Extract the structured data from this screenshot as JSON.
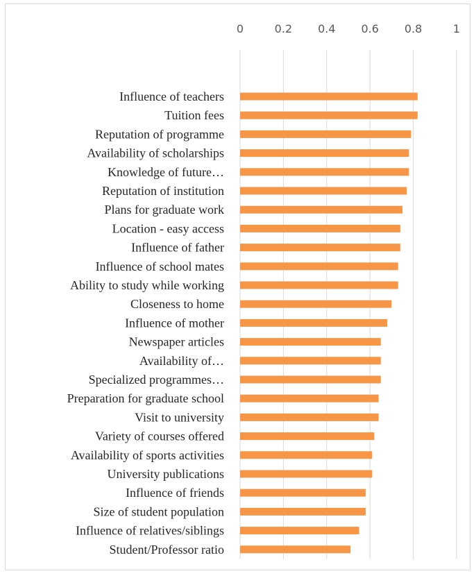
{
  "chart_data": {
    "type": "bar",
    "orientation": "horizontal",
    "title": "",
    "xlabel": "",
    "ylabel": "",
    "xlim": [
      0,
      1
    ],
    "x_ticks": [
      0,
      0.2,
      0.4,
      0.6,
      0.8,
      1
    ],
    "x_tick_labels": [
      "0",
      "0.2",
      "0.4",
      "0.6",
      "0.8",
      "1"
    ],
    "axis_position": "top",
    "grid": "vertical",
    "legend": "none",
    "bar_color": "#f79646",
    "gridline_color": "#d9d9d9",
    "categories": [
      "Influence of teachers",
      "Tuition fees",
      "Reputation of programme",
      "Availability of scholarships",
      "Knowledge of future…",
      "Reputation of institution",
      "Plans for graduate work",
      "Location - easy access",
      "Influence of father",
      "Influence of school mates",
      "Ability to study while working",
      "Closeness to home",
      "Influence of mother",
      "Newspaper articles",
      "Availability of…",
      "Specialized programmes…",
      "Preparation for graduate school",
      "Visit to university",
      "Variety of courses offered",
      "Availability of sports activities",
      "University publications",
      "Influence of friends",
      "Size of student population",
      "Influence of relatives/siblings",
      "Student/Professor ratio"
    ],
    "values": [
      0.82,
      0.82,
      0.79,
      0.78,
      0.78,
      0.77,
      0.75,
      0.74,
      0.74,
      0.73,
      0.73,
      0.7,
      0.68,
      0.65,
      0.65,
      0.65,
      0.64,
      0.64,
      0.62,
      0.61,
      0.61,
      0.58,
      0.58,
      0.55,
      0.51
    ]
  }
}
